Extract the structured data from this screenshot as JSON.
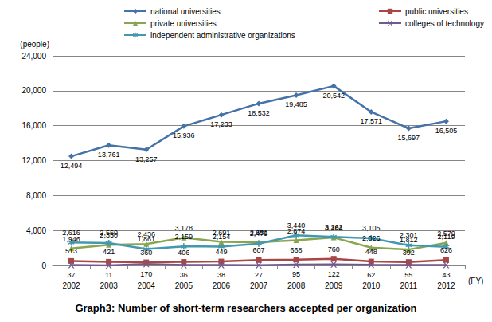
{
  "chart_data": {
    "type": "line",
    "title": "Graph3: Number of short-term researchers accepted per organization",
    "x_label": "(FY)",
    "y_label": "(people)",
    "categories": [
      "2002",
      "2003",
      "2004",
      "2005",
      "2006",
      "2007",
      "2008",
      "2009",
      "2010",
      "2011",
      "2012"
    ],
    "series": [
      {
        "name": "national universities",
        "color": "#4572A7",
        "marker": "diamond",
        "values": [
          12494,
          13761,
          13257,
          15936,
          17233,
          18532,
          19485,
          20542,
          17571,
          15697,
          16505
        ],
        "value_labels": [
          "12,494",
          "13,761",
          "13,257",
          "15,936",
          "17,233",
          "18,532",
          "19,485",
          "20,542",
          "17,571",
          "15,697",
          "16,505"
        ]
      },
      {
        "name": "public universities",
        "color": "#AA4643",
        "marker": "square",
        "values": [
          513,
          421,
          360,
          406,
          449,
          607,
          668,
          760,
          448,
          392,
          626
        ]
      },
      {
        "name": "private universities",
        "color": "#89A54E",
        "marker": "triangle",
        "values": [
          1946,
          2350,
          2436,
          3178,
          2691,
          2651,
          2874,
          3184,
          2026,
          1812,
          2579
        ],
        "value_labels": [
          "1,946",
          "2,350",
          "2,436",
          "3,178",
          "2,691",
          "2,651",
          "2,874",
          "3,184",
          "2,026",
          "1,812",
          "2,579"
        ]
      },
      {
        "name": "colleges of technology",
        "color": "#71588F",
        "marker": "x",
        "values": [
          37,
          11,
          170,
          36,
          38,
          27,
          95,
          122,
          62,
          55,
          43
        ]
      },
      {
        "name": "independent administrative organizations",
        "color": "#4198AF",
        "marker": "asterisk",
        "values": [
          2616,
          2560,
          1861,
          2159,
          2154,
          2479,
          3440,
          3262,
          3105,
          2301,
          2119
        ],
        "value_labels": [
          "2,616",
          "2,560",
          "1,861",
          "2,159",
          "2,154",
          "2,479",
          "3,440",
          "3,262",
          "3,105",
          "2,301",
          "2,119"
        ]
      }
    ],
    "ylim": [
      0,
      24000
    ],
    "yticks": [
      0,
      {
        "value": 4000,
        "label": "4,000"
      },
      {
        "value": 8000,
        "label": "8,000"
      },
      {
        "value": 12000,
        "label": "12,000"
      },
      {
        "value": 16000,
        "label": "16,000"
      },
      {
        "value": 20000,
        "label": "20,000"
      },
      {
        "value": 24000,
        "label": "24,000"
      }
    ],
    "grid": true,
    "legend": "top",
    "data_labels": true
  }
}
